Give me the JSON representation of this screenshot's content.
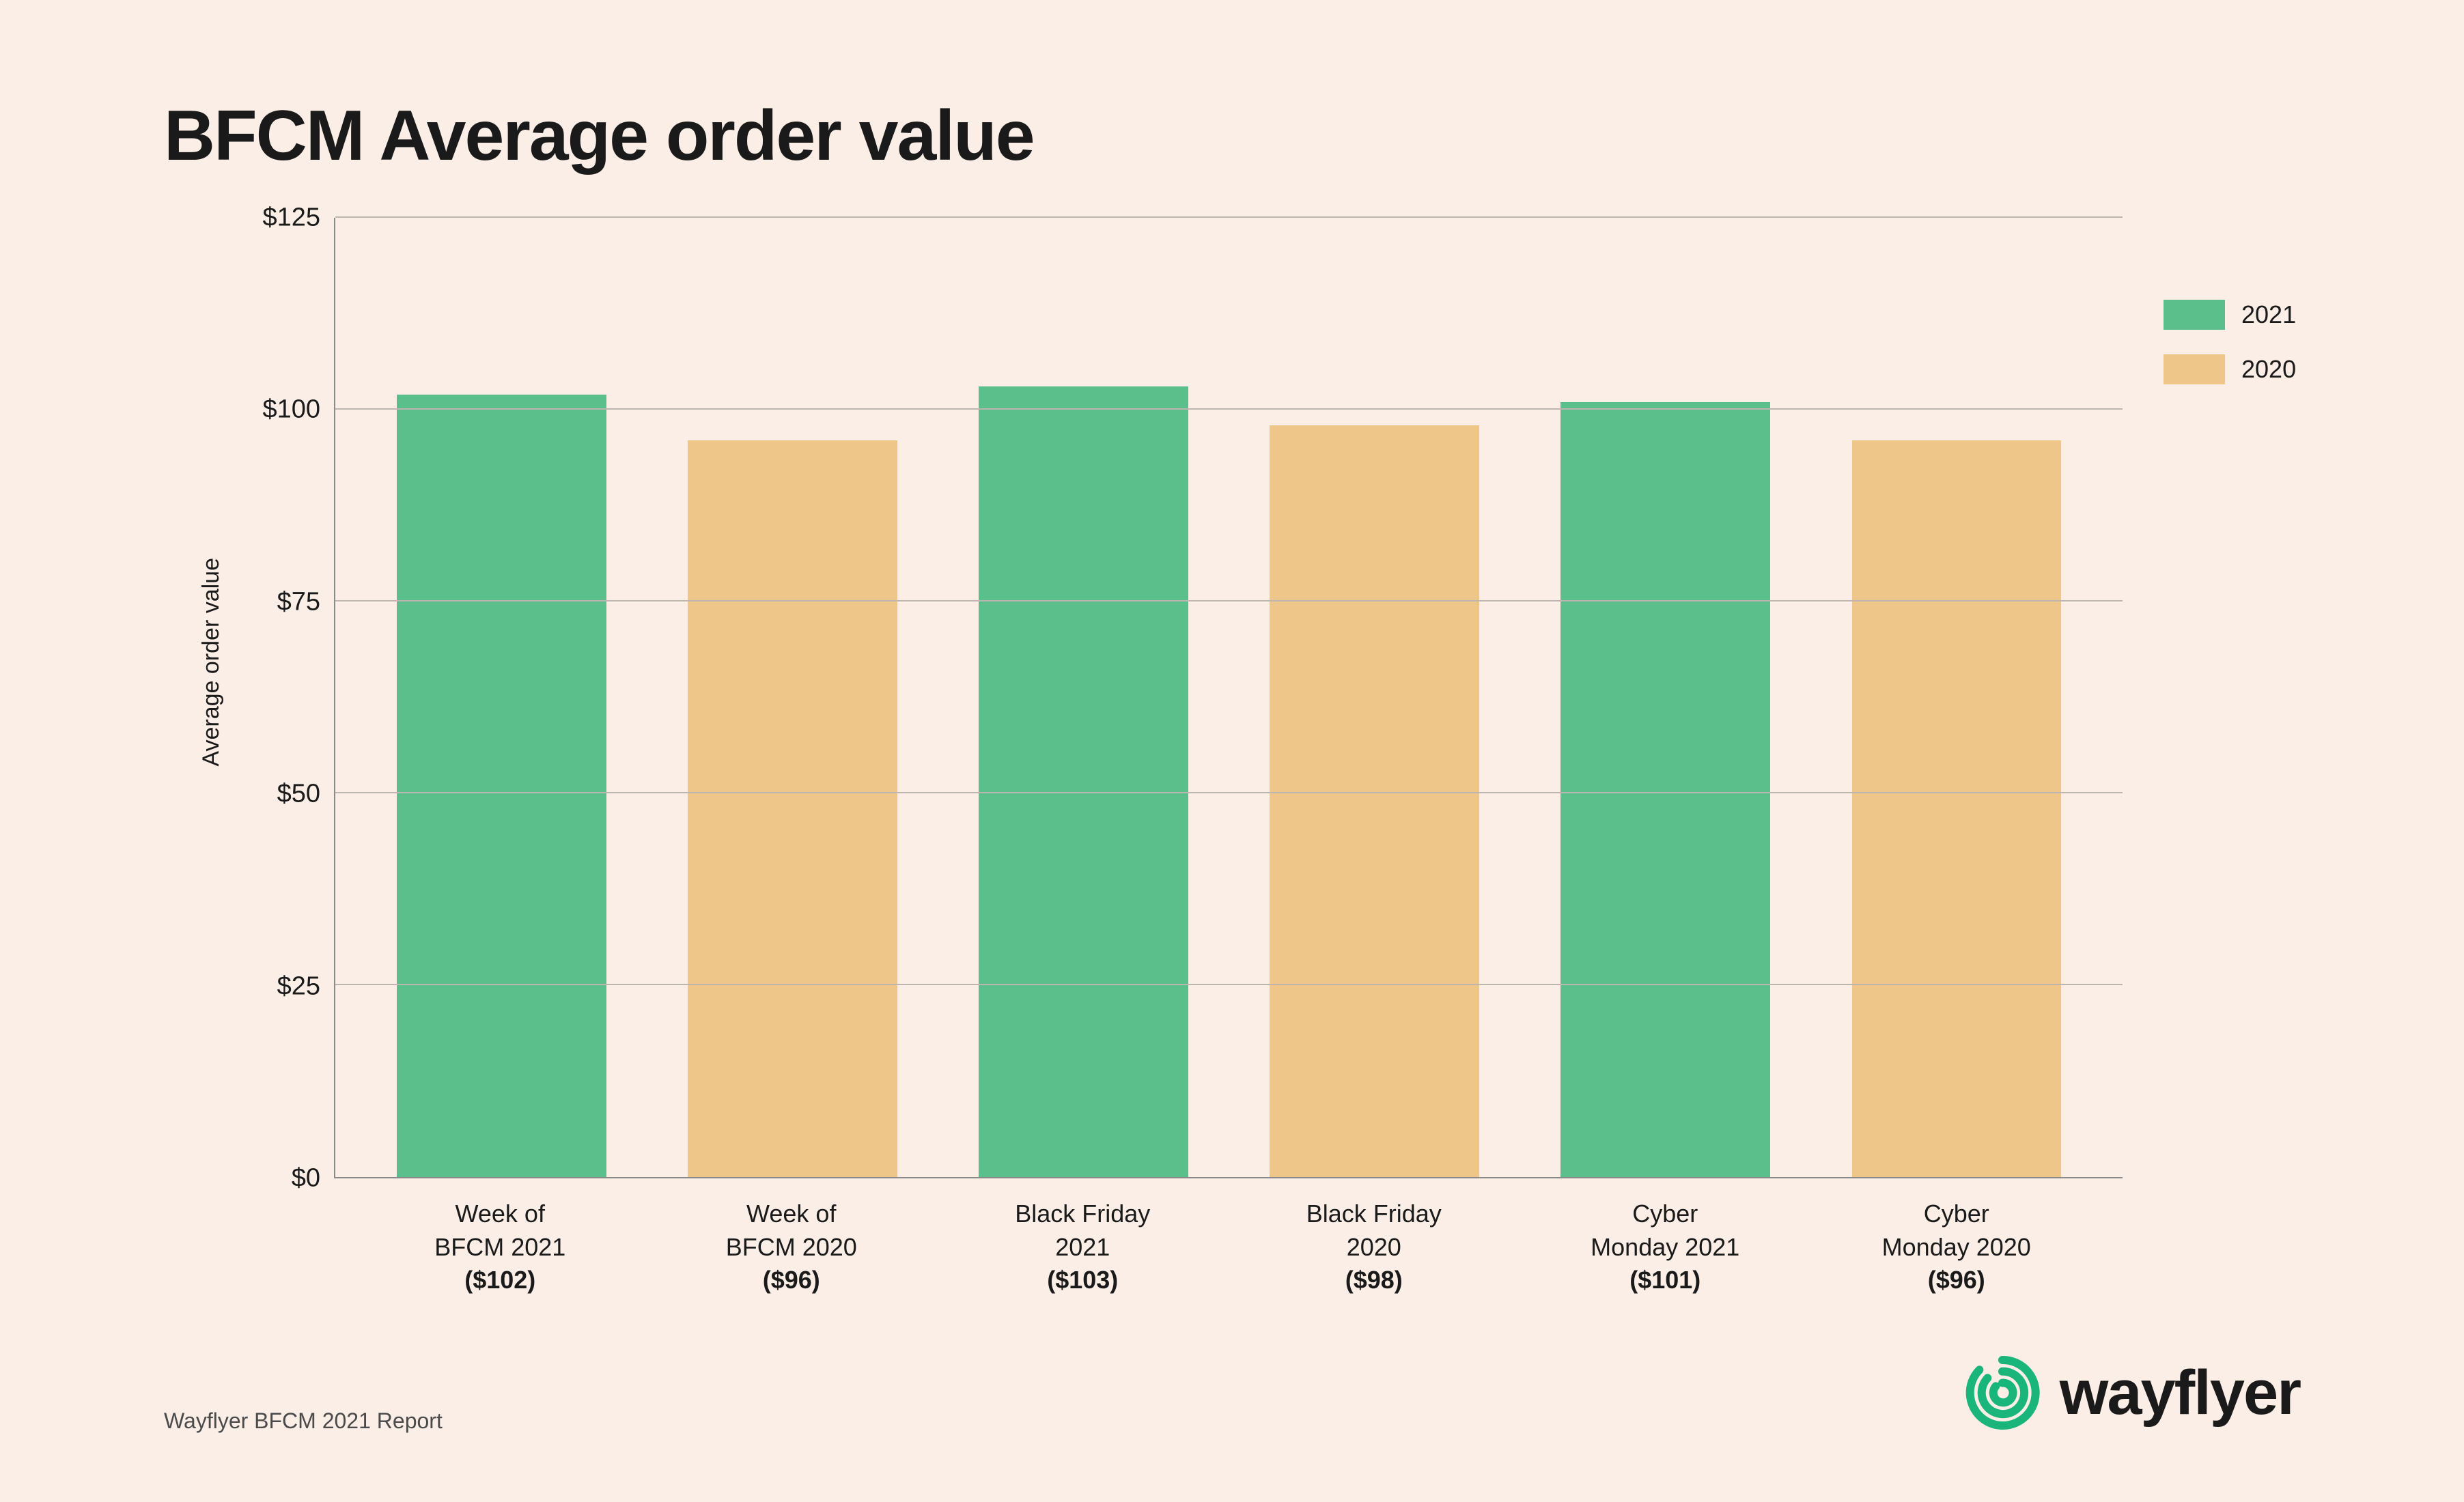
{
  "title": "BFCM Average order value",
  "chart": {
    "type": "bar",
    "background_color": "#fbeee6",
    "grid_color": "#bdb5af",
    "axis_color": "#8a8a8a",
    "ylabel": "Average order value",
    "label_fontsize": 34,
    "tick_fontsize": 38,
    "title_fontsize": 104,
    "ylim": [
      0,
      125
    ],
    "ytick_step": 25,
    "yticks": [
      {
        "value": 0,
        "label": "$0"
      },
      {
        "value": 25,
        "label": "$25"
      },
      {
        "value": 50,
        "label": "$50"
      },
      {
        "value": 75,
        "label": "$75"
      },
      {
        "value": 100,
        "label": "$100"
      },
      {
        "value": 125,
        "label": "$125"
      }
    ],
    "bar_width": 0.72,
    "series_colors": {
      "2021": "#5bbf8c",
      "2020": "#efc68a"
    },
    "bars": [
      {
        "label_line1": "Week of",
        "label_line2": "BFCM 2021",
        "value_label": "($102)",
        "value": 102,
        "series": "2021",
        "color": "#5bbf8c"
      },
      {
        "label_line1": "Week of",
        "label_line2": "BFCM 2020",
        "value_label": "($96)",
        "value": 96,
        "series": "2020",
        "color": "#efc68a"
      },
      {
        "label_line1": "Black Friday",
        "label_line2": "2021",
        "value_label": "($103)",
        "value": 103,
        "series": "2021",
        "color": "#5bbf8c"
      },
      {
        "label_line1": "Black Friday",
        "label_line2": "2020",
        "value_label": "($98)",
        "value": 98,
        "series": "2020",
        "color": "#efc68a"
      },
      {
        "label_line1": "Cyber",
        "label_line2": "Monday 2021",
        "value_label": "($101)",
        "value": 101,
        "series": "2021",
        "color": "#5bbf8c"
      },
      {
        "label_line1": "Cyber",
        "label_line2": "Monday 2020",
        "value_label": "($96)",
        "value": 96,
        "series": "2020",
        "color": "#efc68a"
      }
    ],
    "legend": [
      {
        "label": "2021",
        "color": "#5bbf8c"
      },
      {
        "label": "2020",
        "color": "#efc68a"
      }
    ]
  },
  "footer": {
    "attribution": "Wayflyer BFCM 2021 Report",
    "brand_name": "wayflyer",
    "brand_color": "#19b57a"
  }
}
